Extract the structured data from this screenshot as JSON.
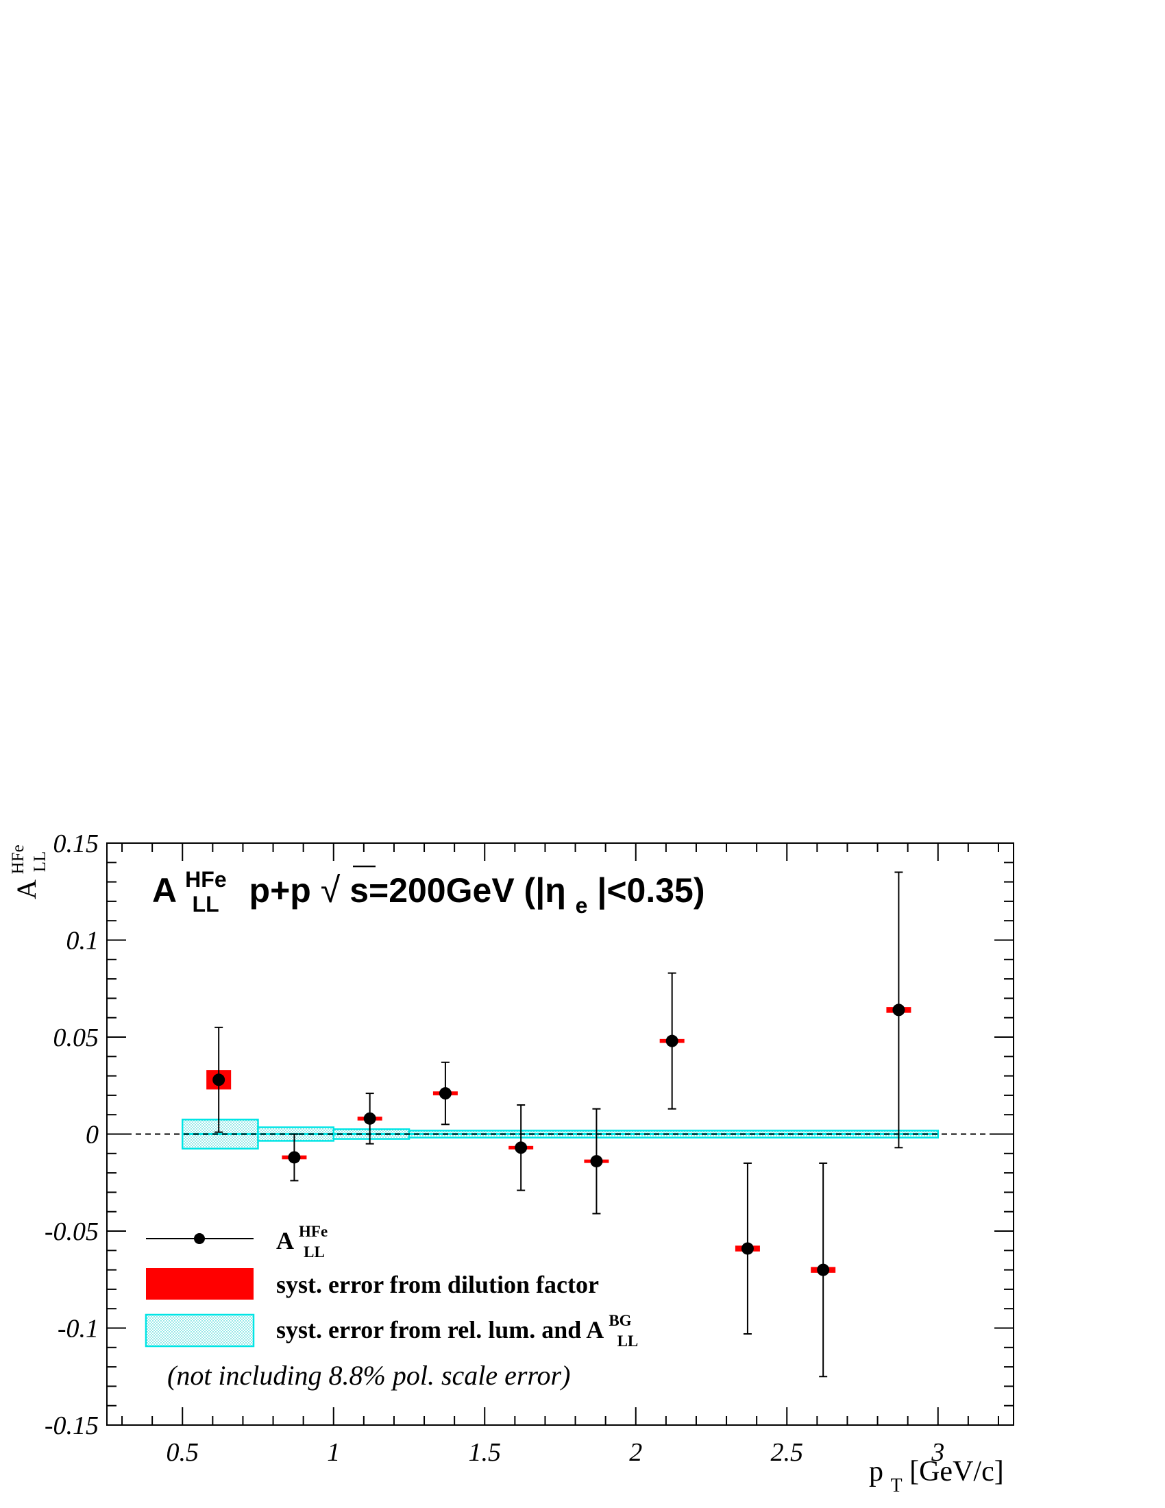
{
  "chart_data": {
    "type": "scatter",
    "title": {
      "main": "A",
      "main_sup": "HFe",
      "main_sub": "LL",
      "process": "p+p",
      "sqrt_symbol": "√",
      "energy": "s=200GeV (|η",
      "eta_sub": "e",
      "cut": "|<0.35)"
    },
    "xlabel": {
      "main": "p",
      "sub": "T",
      "unit": " [GeV/c]"
    },
    "ylabel": {
      "main": "A",
      "sup": "HFe",
      "sub": "LL"
    },
    "xlim": [
      0.25,
      3.25
    ],
    "ylim": [
      -0.15,
      0.15
    ],
    "x_ticks": [
      0.5,
      1,
      1.5,
      2,
      2.5,
      3
    ],
    "x_tick_labels": [
      "0.5",
      "1",
      "1.5",
      "2",
      "2.5",
      "3"
    ],
    "y_ticks": [
      -0.15,
      -0.1,
      -0.05,
      0,
      0.05,
      0.1,
      0.15
    ],
    "y_tick_labels": [
      "-0.15",
      "-0.1",
      "-0.05",
      "0",
      "0.05",
      "0.1",
      "0.15"
    ],
    "grid": false,
    "zero_line": "dashed",
    "points": [
      {
        "x": 0.62,
        "y": 0.028,
        "stat": 0.027,
        "syst_dilution": 0.005
      },
      {
        "x": 0.87,
        "y": -0.012,
        "stat": 0.012,
        "syst_dilution": 0.001
      },
      {
        "x": 1.12,
        "y": 0.008,
        "stat": 0.013,
        "syst_dilution": 0.001
      },
      {
        "x": 1.37,
        "y": 0.021,
        "stat": 0.016,
        "syst_dilution": 0.001
      },
      {
        "x": 1.62,
        "y": -0.007,
        "stat": 0.022,
        "syst_dilution": 0.0005
      },
      {
        "x": 1.87,
        "y": -0.014,
        "stat": 0.027,
        "syst_dilution": 0.0005
      },
      {
        "x": 2.12,
        "y": 0.048,
        "stat": 0.035,
        "syst_dilution": 0.001
      },
      {
        "x": 2.37,
        "y": -0.059,
        "stat": 0.044,
        "syst_dilution": 0.0015
      },
      {
        "x": 2.62,
        "y": -0.07,
        "stat": 0.055,
        "syst_dilution": 0.0015
      },
      {
        "x": 2.87,
        "y": 0.064,
        "stat": 0.071,
        "syst_dilution": 0.0015
      }
    ],
    "syst_rel_lum_bg": [
      {
        "x0": 0.5,
        "x1": 0.75,
        "err": 0.0075
      },
      {
        "x0": 0.75,
        "x1": 1.0,
        "err": 0.0035
      },
      {
        "x0": 1.0,
        "x1": 1.25,
        "err": 0.0025
      },
      {
        "x0": 1.25,
        "x1": 3.0,
        "err": 0.0018
      }
    ],
    "legend": {
      "position": "bottom-left",
      "entries": [
        {
          "label": "A",
          "label_sup": "HFe",
          "label_sub": "LL",
          "style": "marker-line"
        },
        {
          "label": "syst. error from dilution factor",
          "style": "red-box"
        },
        {
          "label": "syst. error from rel. lum. and A",
          "label_sup": "BG",
          "label_sub": "LL",
          "style": "cyan-hatched-box"
        }
      ],
      "note": "(not including 8.8% pol. scale error)"
    },
    "colors": {
      "marker": "#000000",
      "dilution": "#ff0000",
      "rel_lum": "#00e5e5",
      "axis": "#000000"
    }
  }
}
